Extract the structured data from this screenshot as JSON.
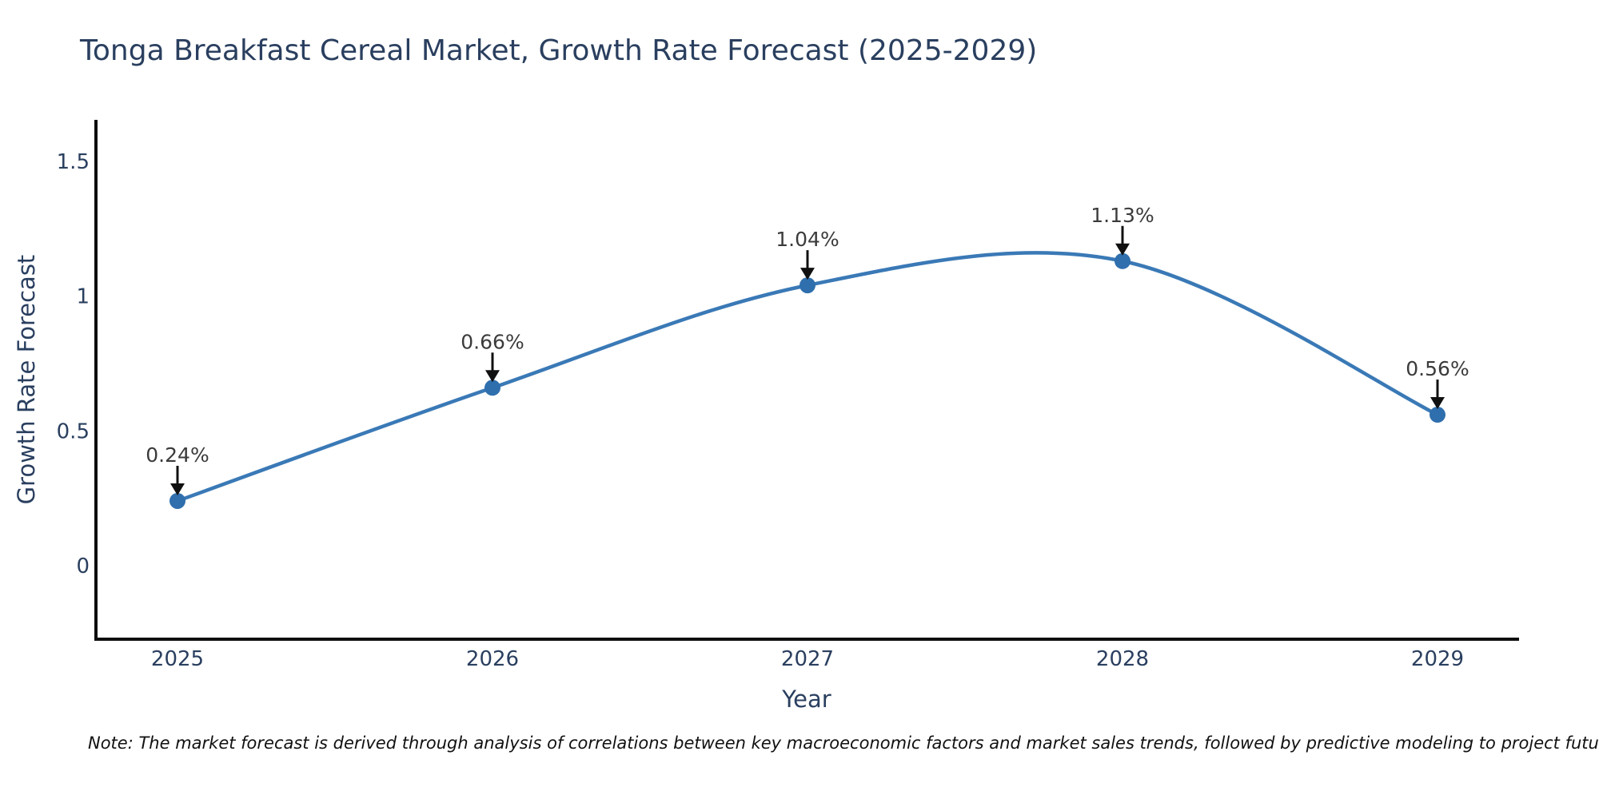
{
  "chart": {
    "title": "Tonga Breakfast Cereal Market, Growth Rate Forecast (2025-2029)",
    "xlabel": "Year",
    "ylabel": "Growth Rate Forecast",
    "note": "Note: The market forecast is derived through analysis of correlations between key macroeconomic factors and market sales trends, followed by predictive modeling to project future sales",
    "colors": {
      "title_text": "#2a3f5f",
      "axis_text": "#2a3f5f",
      "annotation_text": "#3b3b3b",
      "arrow": "#101010",
      "axis_line": "#0d0d0d",
      "line": "#3a79b6",
      "marker": "#2f6fad",
      "background": "#ffffff"
    }
  },
  "chart_data": {
    "type": "line",
    "title": "Tonga Breakfast Cereal Market, Growth Rate Forecast (2025-2029)",
    "xlabel": "Year",
    "ylabel": "Growth Rate Forecast",
    "categories": [
      "2025",
      "2026",
      "2027",
      "2028",
      "2029"
    ],
    "values": [
      0.24,
      0.66,
      1.04,
      1.13,
      0.56
    ],
    "point_labels": [
      "0.24%",
      "0.66%",
      "1.04%",
      "1.13%",
      "0.56%"
    ],
    "ytick_values": [
      0,
      0.5,
      1,
      1.5
    ],
    "ytick_labels": [
      "0",
      "0.5",
      "1",
      "1.5"
    ],
    "ylim": [
      -0.273,
      1.654
    ],
    "line_shape": "spline",
    "grid": "off",
    "legend": "off",
    "annotations": "value labels with down arrows above each point"
  }
}
